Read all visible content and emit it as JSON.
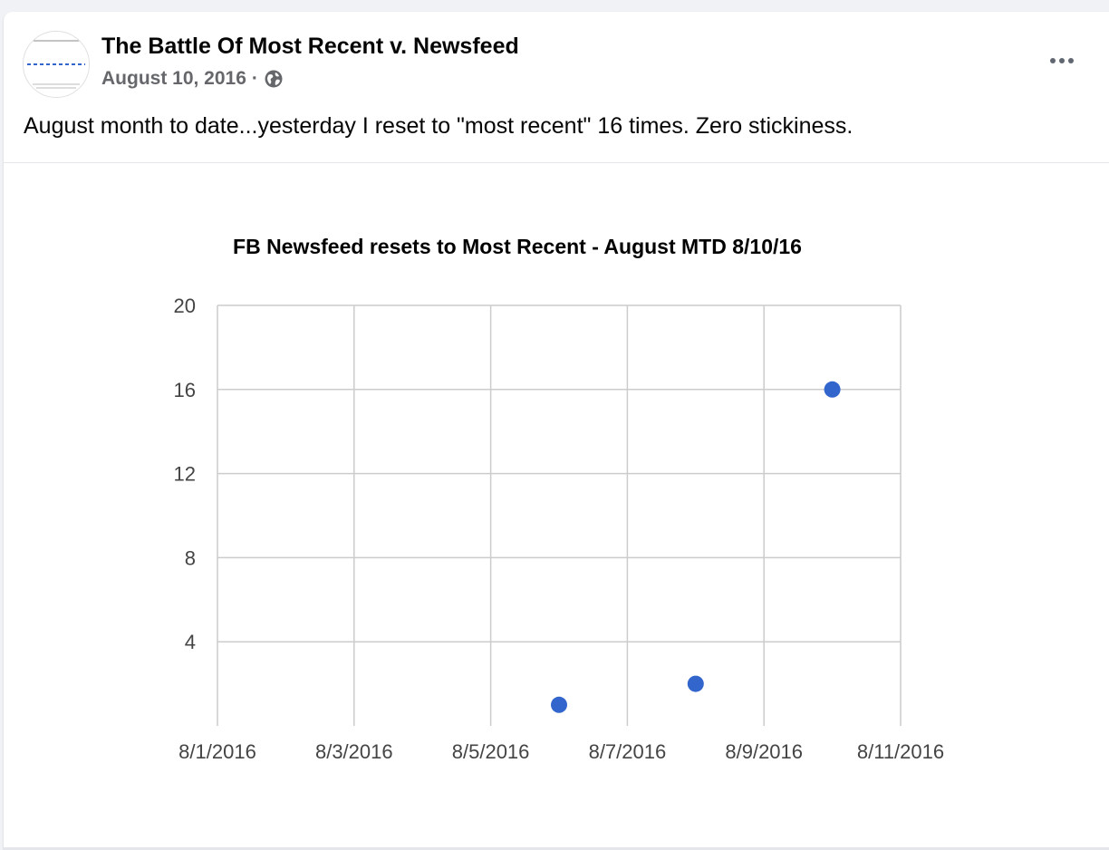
{
  "post": {
    "title": "The Battle Of Most Recent v. Newsfeed",
    "date": "August 10, 2016",
    "separator": "·",
    "privacy_icon": "globe-icon",
    "more_icon": "more-options-icon",
    "text": "August month to date...yesterday I reset to \"most recent\" 16 times.  Zero stickiness."
  },
  "colors": {
    "point": "#3366cc",
    "grid": "#cccccc",
    "meta_text": "#65676b"
  },
  "chart_data": {
    "type": "scatter",
    "title": "FB Newsfeed resets to Most Recent - August MTD 8/10/16",
    "xlabel": "",
    "ylabel": "",
    "x_ticks": [
      "8/1/2016",
      "8/3/2016",
      "8/5/2016",
      "8/7/2016",
      "8/9/2016",
      "8/11/2016"
    ],
    "y_ticks": [
      "4",
      "8",
      "12",
      "16",
      "20"
    ],
    "xlim": [
      "2016-08-01",
      "2016-08-11"
    ],
    "ylim": [
      0,
      20
    ],
    "grid": true,
    "legend": "none",
    "points": [
      {
        "x": "2016-08-06",
        "y": 1
      },
      {
        "x": "2016-08-08",
        "y": 2
      },
      {
        "x": "2016-08-10",
        "y": 16
      }
    ]
  }
}
